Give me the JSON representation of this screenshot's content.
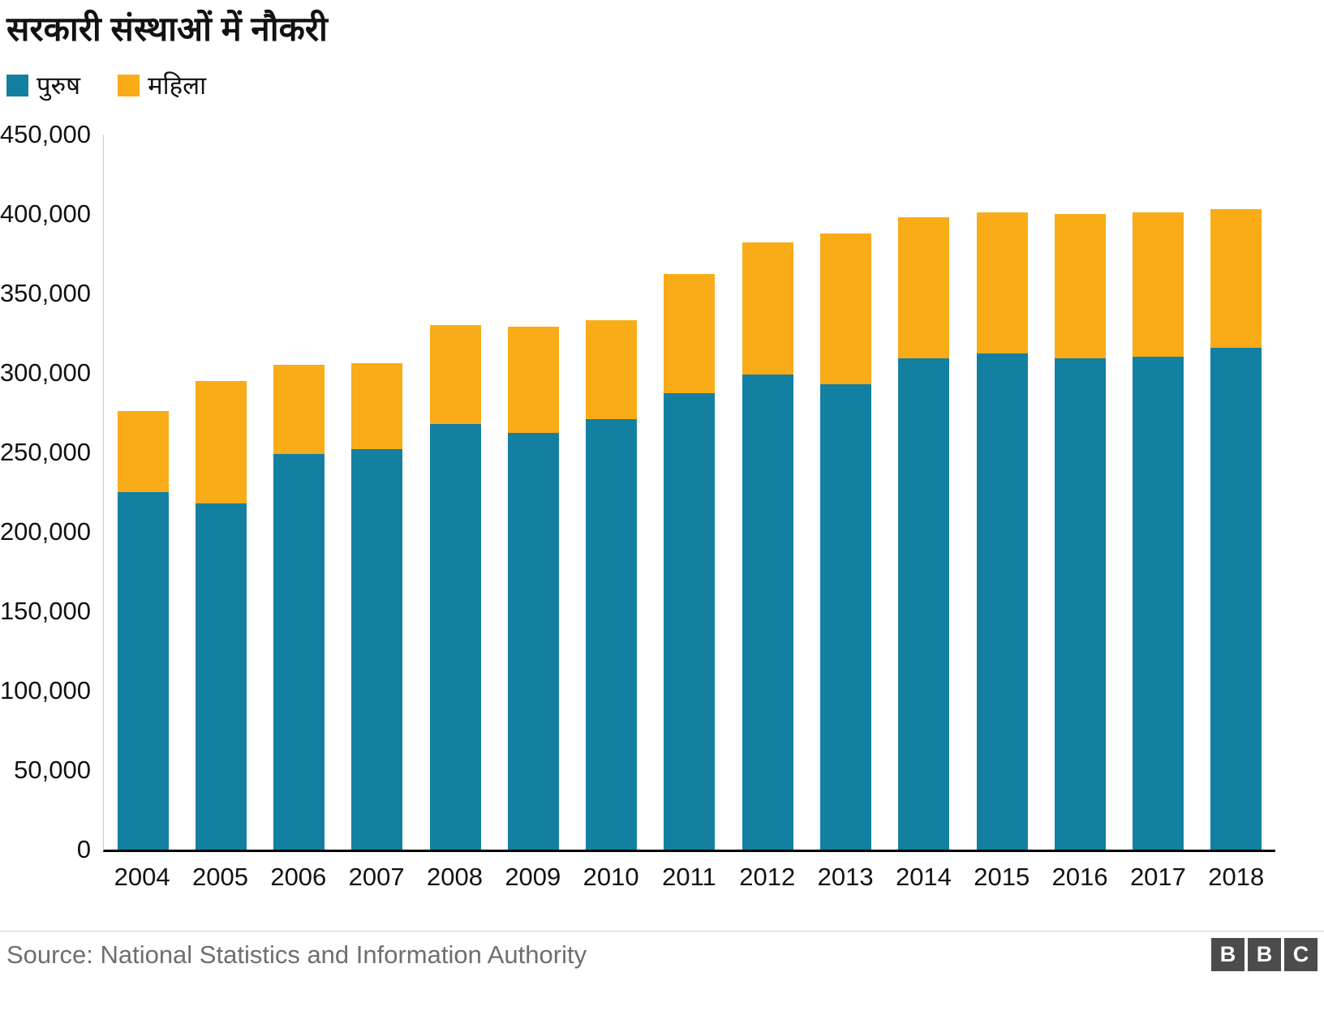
{
  "title": "सरकारी संस्थाओं में नौकरी",
  "legend": [
    {
      "label": "पुरुष",
      "color": "#1380A1"
    },
    {
      "label": "महिला",
      "color": "#FAAB18"
    }
  ],
  "source": "Source: National Statistics and Information Authority",
  "logo_letters": [
    "B",
    "B",
    "C"
  ],
  "colors": {
    "male": "#1380A1",
    "female": "#FAAB18",
    "axis_baseline": "#000000",
    "axis_line": "#cccccc",
    "source_text": "#6e6e73"
  },
  "chart_data": {
    "type": "bar",
    "stacked": true,
    "title": "सरकारी संस्थाओं में नौकरी",
    "categories": [
      "2004",
      "2005",
      "2006",
      "2007",
      "2008",
      "2009",
      "2010",
      "2011",
      "2012",
      "2013",
      "2014",
      "2015",
      "2016",
      "2017",
      "2018"
    ],
    "series": [
      {
        "name": "पुरुष",
        "color": "#1380A1",
        "values": [
          225000,
          218000,
          249000,
          252000,
          268000,
          262000,
          271000,
          287000,
          299000,
          293000,
          309000,
          312000,
          309000,
          310000,
          316000
        ]
      },
      {
        "name": "महिला",
        "color": "#FAAB18",
        "values": [
          51000,
          77000,
          56000,
          54000,
          62000,
          67000,
          62000,
          75000,
          83000,
          95000,
          89000,
          89000,
          91000,
          91000,
          87000
        ]
      }
    ],
    "totals": [
      276000,
      295000,
      305000,
      306000,
      330000,
      329000,
      333000,
      362000,
      382000,
      388000,
      398000,
      401000,
      400000,
      401000,
      403000
    ],
    "xlabel": "",
    "ylabel": "",
    "ylim": [
      0,
      450000
    ],
    "yticks": [
      0,
      50000,
      100000,
      150000,
      200000,
      250000,
      300000,
      350000,
      400000,
      450000
    ],
    "grid": false,
    "legend_position": "top-left"
  }
}
